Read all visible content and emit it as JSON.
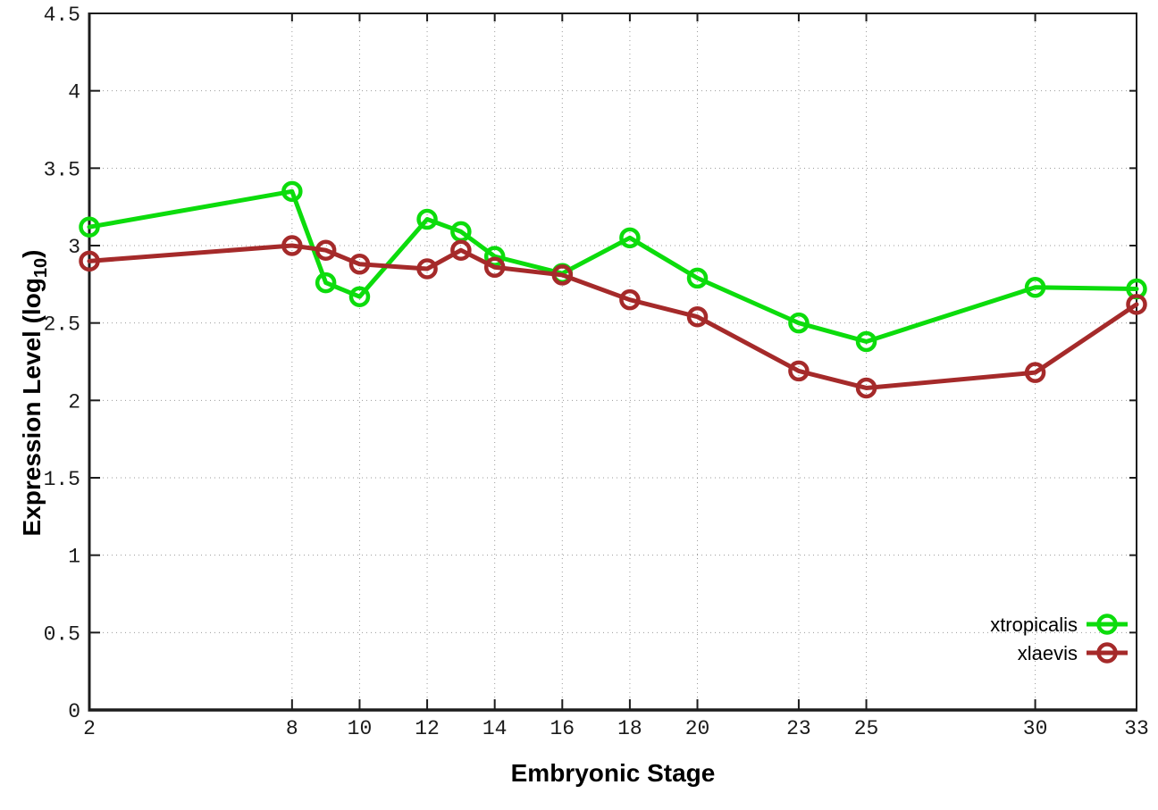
{
  "chart_data": {
    "type": "line",
    "title": "",
    "xlabel": "Embryonic Stage",
    "ylabel": "Expression Level (log10)",
    "ylabel_parts": {
      "prefix": "Expression Level (log",
      "subscript": "10",
      "suffix": ")"
    },
    "x": [
      2,
      8,
      9,
      10,
      12,
      13,
      14,
      16,
      18,
      20,
      23,
      25,
      30,
      33
    ],
    "xlim": [
      2,
      33
    ],
    "ylim": [
      0,
      4.5
    ],
    "x_tick_values": [
      2,
      8,
      10,
      12,
      14,
      16,
      18,
      20,
      23,
      25,
      30,
      33
    ],
    "x_tick_labels": [
      "2",
      "8",
      "10",
      "12",
      "14",
      "16",
      "18",
      "20",
      "23",
      "25",
      "30",
      "33"
    ],
    "y_tick_values": [
      0,
      0.5,
      1,
      1.5,
      2,
      2.5,
      3,
      3.5,
      4,
      4.5
    ],
    "y_tick_labels": [
      "0",
      "0.5",
      "1",
      "1.5",
      "2",
      "2.5",
      "3",
      "3.5",
      "4",
      "4.5"
    ],
    "grid": true,
    "legend_position": "inside-bottom-right",
    "series": [
      {
        "name": "xtropicalis",
        "color": "#0cdc0c",
        "values": [
          3.12,
          3.35,
          2.76,
          2.67,
          3.17,
          3.09,
          2.93,
          2.82,
          3.05,
          2.79,
          2.5,
          2.38,
          2.73,
          2.72
        ]
      },
      {
        "name": "xlaevis",
        "color": "#a52a2a",
        "values": [
          2.9,
          3.0,
          2.97,
          2.88,
          2.85,
          2.97,
          2.86,
          2.81,
          2.65,
          2.54,
          2.19,
          2.08,
          2.18,
          2.62
        ]
      }
    ]
  },
  "colors": {
    "background": "#ffffff",
    "grid": "#9a9a9a",
    "axis": "#1c1c1c",
    "tick_text": "#1a1a1a"
  }
}
